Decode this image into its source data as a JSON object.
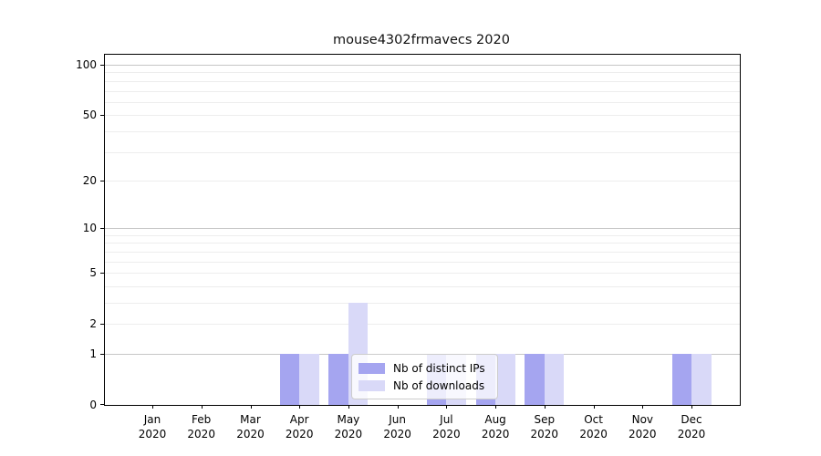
{
  "chart_data": {
    "type": "bar",
    "title": "mouse4302frmavecs 2020",
    "year": "2020",
    "categories": [
      "Jan",
      "Feb",
      "Mar",
      "Apr",
      "May",
      "Jun",
      "Jul",
      "Aug",
      "Sep",
      "Oct",
      "Nov",
      "Dec"
    ],
    "series": [
      {
        "name": "Nb of distinct IPs",
        "color": "#a5a5f0",
        "values": [
          0,
          0,
          0,
          1,
          1,
          0,
          1,
          1,
          1,
          0,
          0,
          1
        ]
      },
      {
        "name": "Nb of downloads",
        "color": "#d9d9f8",
        "values": [
          0,
          0,
          0,
          1,
          3,
          0,
          1,
          1,
          1,
          0,
          0,
          1
        ]
      }
    ],
    "yscale": "log1p",
    "ylim": [
      0,
      115
    ],
    "yticks": [
      0,
      1,
      2,
      5,
      10,
      20,
      50,
      100
    ],
    "grid_major": [
      1,
      10,
      100
    ],
    "grid_minor": [
      2,
      3,
      4,
      5,
      6,
      7,
      8,
      9,
      20,
      30,
      40,
      50,
      60,
      70,
      80,
      90
    ],
    "legend_position": "lower center",
    "grid_on": true,
    "colors": {
      "grid_major": "#c6c6c6",
      "grid_minor": "#ededed",
      "spine": "#000000",
      "text": "#000000",
      "legend_border": "#cccccc"
    }
  }
}
